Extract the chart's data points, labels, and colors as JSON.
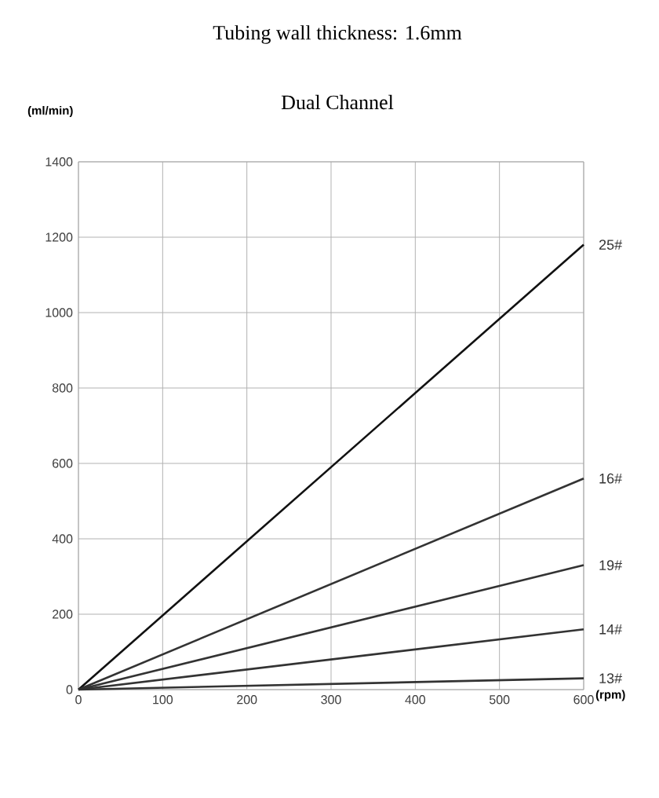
{
  "chart_data": {
    "type": "line",
    "title": "Tubing wall thickness: 1.6mm",
    "subtitle": "Dual Channel",
    "ylabel": "(ml/min)",
    "xlabel": "(rpm)",
    "x": [
      0,
      600
    ],
    "series": [
      {
        "name": "25#",
        "color": "#111111",
        "values": [
          0,
          1180
        ]
      },
      {
        "name": "16#",
        "color": "#333333",
        "values": [
          0,
          560
        ]
      },
      {
        "name": "19#",
        "color": "#333333",
        "values": [
          0,
          330
        ]
      },
      {
        "name": "14#",
        "color": "#333333",
        "values": [
          0,
          160
        ]
      },
      {
        "name": "13#",
        "color": "#333333",
        "values": [
          0,
          30
        ]
      }
    ],
    "xlim": [
      0,
      600
    ],
    "ylim": [
      0,
      1400
    ],
    "xticks": [
      0,
      100,
      200,
      300,
      400,
      500,
      600
    ],
    "yticks": [
      0,
      200,
      400,
      600,
      800,
      1000,
      1200,
      1400
    ],
    "grid": true,
    "marker": "none",
    "line_style": "solid"
  }
}
